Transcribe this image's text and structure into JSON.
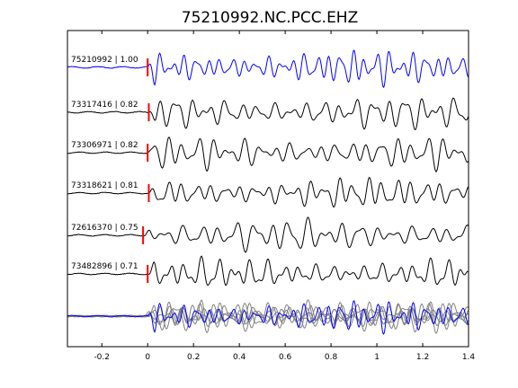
{
  "chart_data": {
    "type": "line",
    "title": "75210992.NC.PCC.EHZ",
    "xlabel": "",
    "ylabel": "",
    "xlim": [
      -0.35,
      1.4
    ],
    "xticks": [
      -0.2,
      0,
      0.2,
      0.4,
      0.6,
      0.8,
      1,
      1.2,
      1.4
    ],
    "xtick_labels": [
      "-0.2",
      "0",
      "0.2",
      "0.4",
      "0.6",
      "0.8",
      "1",
      "1.2",
      "1.4"
    ],
    "grid": false,
    "colors": {
      "reference": "#0000ff",
      "trace": "#000000",
      "stack": "#808080",
      "pick": "#ff0000",
      "axes": "#000000"
    },
    "traces": [
      {
        "label": "75210992 | 1.00",
        "id": "75210992",
        "cc": 1.0,
        "pick": 0.0,
        "color": "#0000ff",
        "seed": 3,
        "amp": 1.0,
        "f": [
          19,
          27,
          13
        ]
      },
      {
        "label": "73317416 | 0.82",
        "id": "73317416",
        "cc": 0.82,
        "pick": 0.005,
        "color": "#000000",
        "seed": 7,
        "amp": 0.95,
        "f": [
          14,
          22,
          9
        ]
      },
      {
        "label": "73306971 | 0.82",
        "id": "73306971",
        "cc": 0.82,
        "pick": 0.0,
        "color": "#000000",
        "seed": 11,
        "amp": 0.95,
        "f": [
          15,
          21,
          10
        ]
      },
      {
        "label": "73318621 | 0.81",
        "id": "73318621",
        "cc": 0.81,
        "pick": 0.005,
        "color": "#000000",
        "seed": 17,
        "amp": 0.9,
        "f": [
          16,
          23,
          8
        ]
      },
      {
        "label": "72616370 | 0.75",
        "id": "72616370",
        "cc": 0.75,
        "pick": -0.02,
        "color": "#000000",
        "seed": 23,
        "amp": 0.95,
        "f": [
          13,
          20,
          9
        ]
      },
      {
        "label": "73482896 | 0.71",
        "id": "73482896",
        "cc": 0.71,
        "pick": 0.0,
        "color": "#000000",
        "seed": 29,
        "amp": 0.9,
        "f": [
          14,
          24,
          10
        ]
      }
    ]
  }
}
